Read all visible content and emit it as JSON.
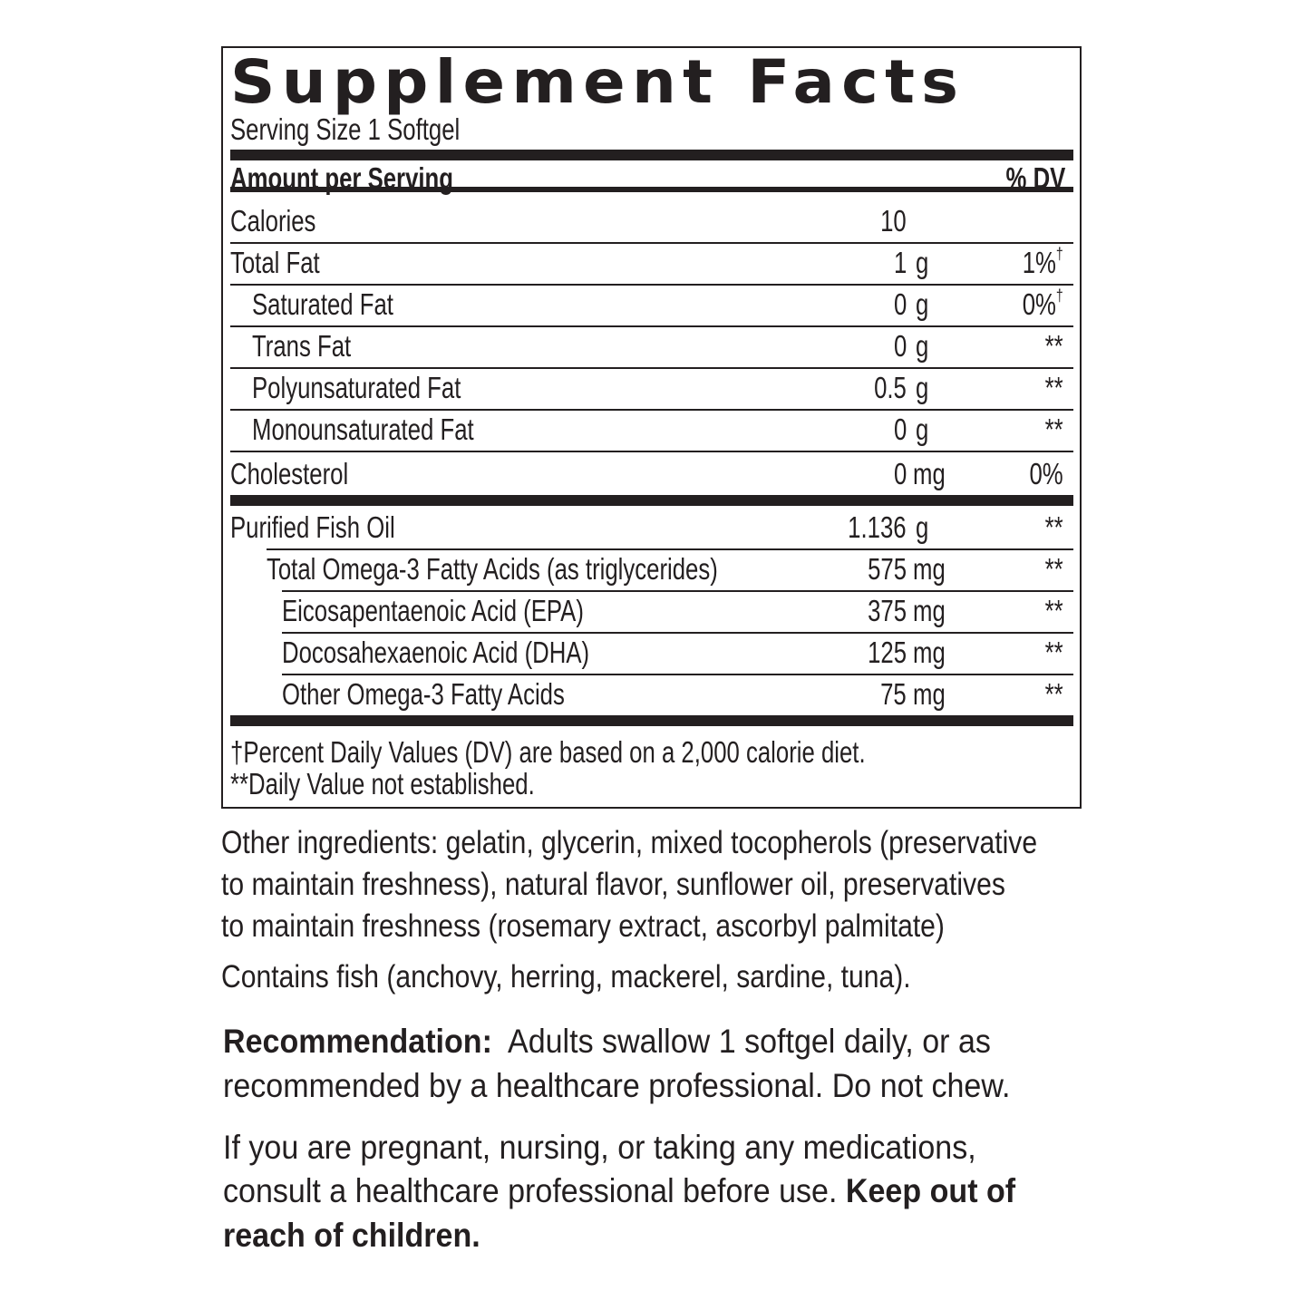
{
  "title": "Supplement Facts",
  "serving_size": "Serving Size 1 Softgel",
  "header": {
    "amount": "Amount per Serving",
    "dv": "% DV"
  },
  "rows": [
    {
      "name": "Calories",
      "num": "10",
      "unit": "",
      "dv": "",
      "dagger": ""
    },
    {
      "name": "Total Fat",
      "num": "1",
      "unit": "g",
      "dv": "1%",
      "dagger": "†"
    },
    {
      "name": "Saturated Fat",
      "num": "0",
      "unit": "g",
      "dv": "0%",
      "dagger": "†"
    },
    {
      "name": "Trans Fat",
      "num": "0",
      "unit": "g",
      "dv": "**",
      "dagger": ""
    },
    {
      "name": "Polyunsaturated Fat",
      "num": "0.5",
      "unit": "g",
      "dv": "**",
      "dagger": ""
    },
    {
      "name": "Monounsaturated Fat",
      "num": "0",
      "unit": "g",
      "dv": "**",
      "dagger": ""
    },
    {
      "name": "Cholesterol",
      "num": "0",
      "unit": "mg",
      "dv": "0%",
      "dagger": ""
    },
    {
      "name": "Purified Fish Oil",
      "num": "1.136",
      "unit": "g",
      "dv": "**",
      "dagger": ""
    },
    {
      "name": "Total Omega-3 Fatty Acids (as triglycerides)",
      "num": "575",
      "unit": "mg",
      "dv": "**",
      "dagger": ""
    },
    {
      "name": "Eicosapentaenoic Acid (EPA)",
      "num": "375",
      "unit": "mg",
      "dv": "**",
      "dagger": ""
    },
    {
      "name": "Docosahexaenoic Acid (DHA)",
      "num": "125",
      "unit": "mg",
      "dv": "**",
      "dagger": ""
    },
    {
      "name": "Other Omega-3 Fatty Acids",
      "num": "75",
      "unit": "mg",
      "dv": "**",
      "dagger": ""
    }
  ],
  "footnotes": [
    "†Percent Daily Values (DV) are based on a 2,000 calorie diet.",
    "**Daily Value not established."
  ],
  "other_ingredients": [
    "Other ingredients: gelatin, glycerin, mixed tocopherols (preservative",
    "to maintain freshness), natural flavor, sunflower oil, preservatives",
    "to maintain freshness (rosemary extract, ascorbyl palmitate)"
  ],
  "contains": "Contains fish (anchovy, herring, mackerel, sardine, tuna).",
  "recommendation": {
    "label": "Recommendation:",
    "line1": "Adults swallow 1 softgel daily, or as",
    "line2": "recommended by a healthcare professional. Do not chew."
  },
  "warning": {
    "line1": "If you are pregnant, nursing, or taking any medications,",
    "line2": "consult a healthcare professional before use.",
    "bold1": "Keep out of",
    "bold2": "reach of children."
  }
}
